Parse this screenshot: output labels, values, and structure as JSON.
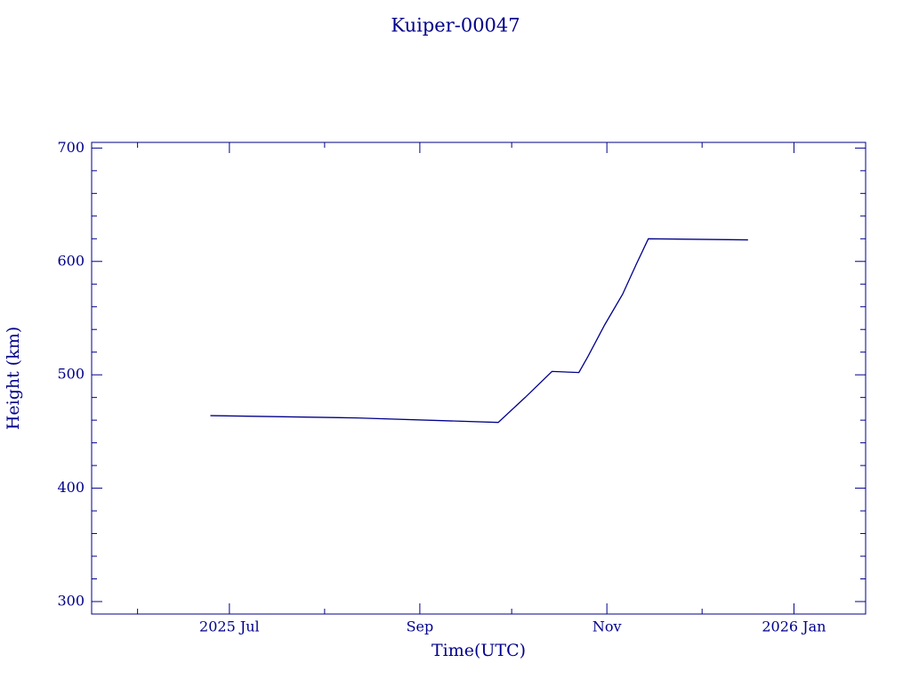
{
  "chart_data": {
    "type": "line",
    "title": "Kuiper-00047",
    "x_label": "Time(UTC)",
    "y_label": "Height (km)",
    "x": [
      2025.479,
      2025.609,
      2025.736,
      2025.76,
      2025.784,
      2025.808,
      2025.816,
      2025.831,
      2025.847,
      2025.859,
      2025.87,
      2025.959
    ],
    "series": [
      {
        "color": "#00008b",
        "values": [
          464,
          462,
          458,
          480,
          503,
          502,
          516,
          544,
          571,
          597,
          620,
          619
        ]
      }
    ],
    "xlim": [
      2025.373,
      2026.064
    ],
    "xticks": [
      {
        "value": 2025.496,
        "label": "2025 Jul"
      },
      {
        "value": 2025.666,
        "label": "Sep"
      },
      {
        "value": 2025.833,
        "label": "Nov"
      },
      {
        "value": 2026.0,
        "label": "2026 Jan"
      }
    ],
    "xminorticks": [
      2025.414,
      2025.581,
      2025.748,
      2025.918
    ],
    "ylim": [
      289,
      705
    ],
    "yticks": [
      300,
      400,
      500,
      600,
      700
    ],
    "yminorticks": [
      320,
      340,
      360,
      380,
      420,
      440,
      460,
      480,
      520,
      540,
      560,
      580,
      620,
      640,
      660,
      680
    ]
  }
}
